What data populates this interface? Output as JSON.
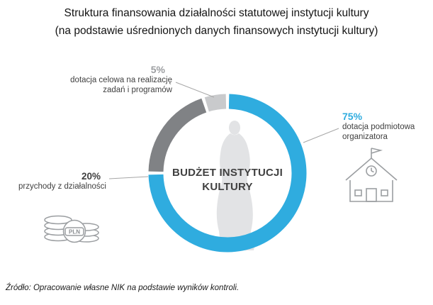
{
  "chart_data": {
    "type": "pie",
    "variant": "donut",
    "title_lines": [
      "Struktura finansowania działalności statutowej instytucji kultury",
      "(na podstawie uśrednionych danych finansowych instytucji kultury)"
    ],
    "center_label_lines": [
      "BUDŻET INSTYTUCJI",
      "KULTURY"
    ],
    "start_angle_deg": 0,
    "direction": "clockwise",
    "total": 100,
    "legend_position": "callouts",
    "segments": [
      {
        "name": "dotacja podmiotowa organizatora",
        "value": 75,
        "pct": "75%",
        "color": "#2facdf",
        "label_lines": [
          "dotacja podmiotowa",
          "organizatora"
        ]
      },
      {
        "name": "przychody z działalności",
        "value": 20,
        "pct": "20%",
        "color": "#808285",
        "label_lines": [
          "przychody z działalności"
        ]
      },
      {
        "name": "dotacja celowa na realizację zadań i programów",
        "value": 5,
        "pct": "5%",
        "color": "#c9cacc",
        "label_lines": [
          "dotacja celowa na realizację",
          "zadań i programów"
        ]
      }
    ]
  },
  "icons": {
    "coins_label": "PLN"
  },
  "source": "Źródło: Opracowanie własne NIK na podstawie wyników kontroli.",
  "colors": {
    "blue": "#2facdf",
    "dark_gray": "#808285",
    "light_gray": "#c9cacc",
    "statue": "#e2e3e5",
    "icon_stroke": "#9b9ea1",
    "leader_line": "#a6a6a6"
  }
}
